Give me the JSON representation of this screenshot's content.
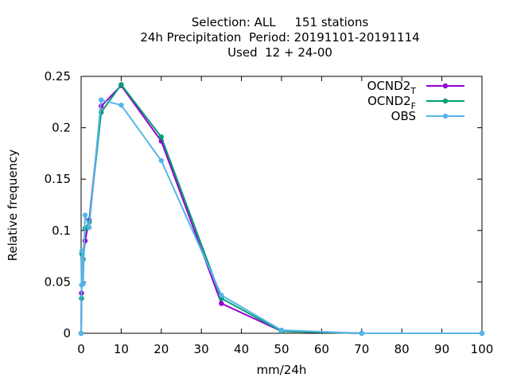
{
  "titles": {
    "line1": "Selection: ALL     151 stations",
    "line2": "24h Precipitation  Period: 20191101-20191114",
    "line3": "Used  12 + 24-00"
  },
  "chart_data": {
    "type": "line",
    "xlabel": "mm/24h",
    "ylabel": "Relative frequency",
    "xlim": [
      0,
      100
    ],
    "ylim": [
      0,
      0.25
    ],
    "x_ticks": [
      "0",
      "10",
      "20",
      "30",
      "40",
      "50",
      "60",
      "70",
      "80",
      "90",
      "100"
    ],
    "y_ticks": [
      "0",
      "0.05",
      "0.1",
      "0.15",
      "0.2",
      "0.25"
    ],
    "grid": false,
    "legend_position": "top-right",
    "series": [
      {
        "name": "OCND2",
        "subscript": "T",
        "color": "#9400d3",
        "x": [
          0,
          0.1,
          0.2,
          0.5,
          1,
          2,
          5,
          10,
          20,
          35,
          50,
          70,
          100
        ],
        "y": [
          0,
          0.039,
          0.078,
          0.072,
          0.09,
          0.11,
          0.221,
          0.241,
          0.187,
          0.029,
          0.002,
          0.0,
          0.0
        ]
      },
      {
        "name": "OCND2",
        "subscript": "F",
        "color": "#009e73",
        "x": [
          0,
          0.1,
          0.2,
          0.5,
          1,
          2,
          5,
          10,
          20,
          35,
          50,
          70,
          100
        ],
        "y": [
          0,
          0.034,
          0.077,
          0.072,
          0.102,
          0.108,
          0.215,
          0.242,
          0.191,
          0.034,
          0.002,
          0.0,
          0.0
        ]
      },
      {
        "name": "OBS",
        "subscript": "",
        "color": "#56b4e9",
        "x": [
          0,
          0.1,
          0.2,
          0.5,
          1,
          2,
          5,
          10,
          20,
          35,
          50,
          70,
          100
        ],
        "y": [
          0,
          0.047,
          0.08,
          0.048,
          0.115,
          0.103,
          0.227,
          0.222,
          0.168,
          0.037,
          0.003,
          0.0,
          0.0
        ]
      }
    ]
  }
}
